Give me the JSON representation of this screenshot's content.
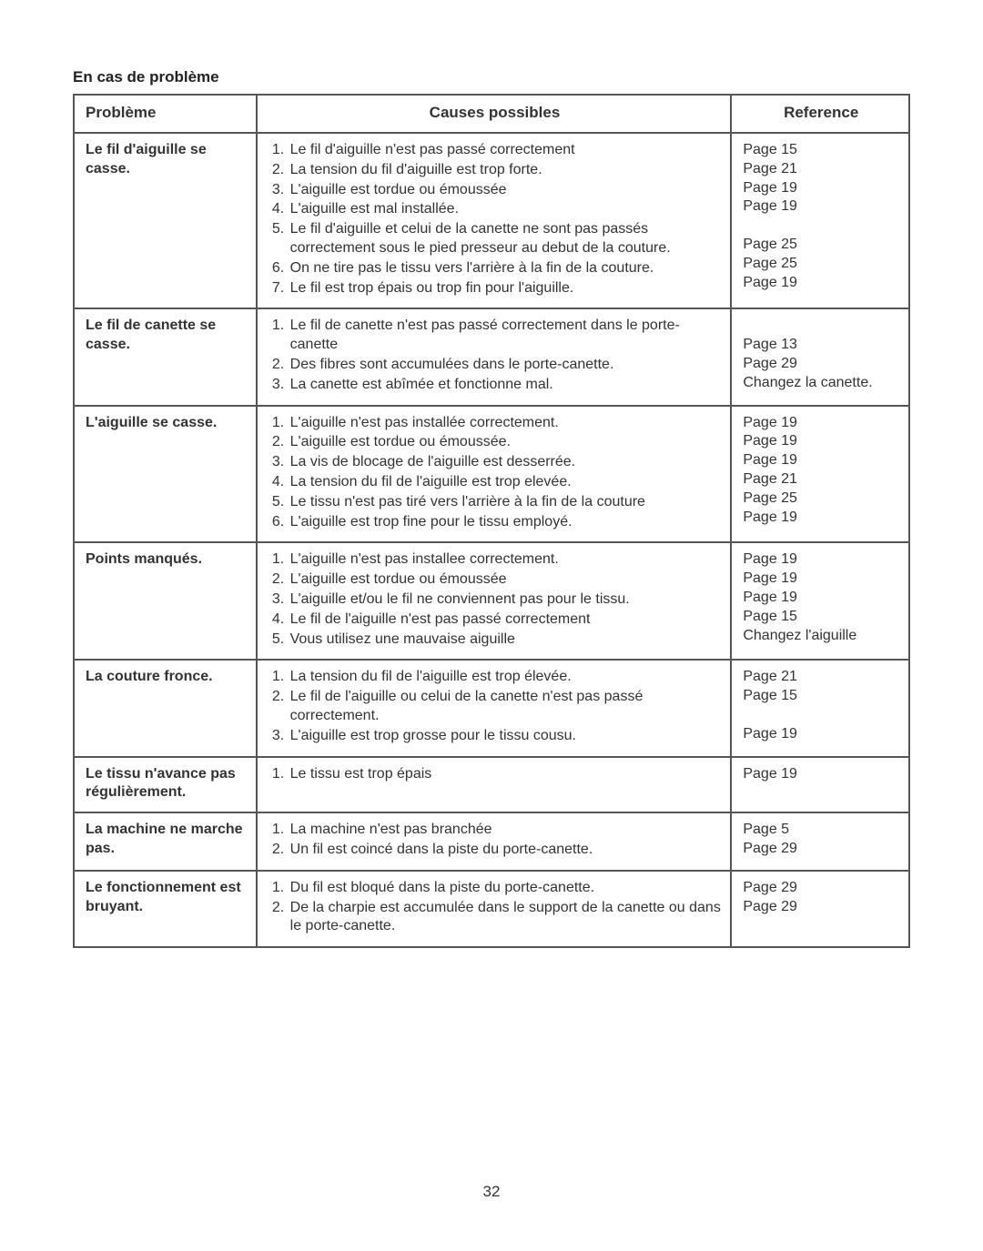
{
  "heading": "En cas de problème",
  "columns": {
    "problem": "Problème",
    "causes": "Causes possibles",
    "reference": "Reference"
  },
  "page_number": "32",
  "rows": [
    {
      "problem": "Le fil d'aiguille se casse.",
      "causes": [
        "Le fil d'aiguille n'est pas passé correctement",
        "La tension du fil d'aiguille est trop forte.",
        "L'aiguille est tordue ou émoussée",
        "L'aiguille est mal installée.",
        "Le fil d'aiguille et celui de la canette ne sont pas passés correctement sous le pied presseur au debut de la couture.",
        "On ne tire pas le tissu vers l'arrière à la fin de la couture.",
        "Le fil est trop épais ou trop fin pour l'aiguille."
      ],
      "refs": [
        "Page 15",
        "Page 21",
        "Page 19",
        "Page 19",
        "",
        "Page 25",
        "Page 25",
        "Page 19"
      ]
    },
    {
      "problem": "Le fil de canette se casse.",
      "causes": [
        "Le fil de canette n'est pas passé correctement dans le porte-canette",
        "Des fibres sont accumulées dans le porte-canette.",
        "La canette est abîmée et fonctionne mal."
      ],
      "refs": [
        "",
        "Page 13",
        "Page 29",
        "Changez la canette."
      ]
    },
    {
      "problem": "L'aiguille se casse.",
      "causes": [
        "L'aiguille n'est pas installée correctement.",
        "L'aiguille est tordue ou émoussée.",
        "La vis de blocage de l'aiguille est desserrée.",
        "La tension du fil de l'aiguille est trop elevée.",
        "Le tissu n'est pas tiré vers l'arrière à la fin de la couture",
        "L'aiguille est trop fine pour le tissu employé."
      ],
      "refs": [
        "Page 19",
        "Page 19",
        "Page 19",
        "Page 21",
        "Page 25",
        "Page 19"
      ]
    },
    {
      "problem": "Points manqués.",
      "causes": [
        "L'aiguille n'est pas installee correctement.",
        "L'aiguille est tordue ou émoussée",
        "L'aiguille et/ou le fil ne conviennent pas pour le tissu.",
        "Le fil de l'aiguille n'est pas passé correctement",
        "Vous utilisez une mauvaise aiguille"
      ],
      "refs": [
        "Page 19",
        "Page 19",
        "Page 19",
        "Page 15",
        "Changez l'aiguille"
      ]
    },
    {
      "problem": "La couture fronce.",
      "causes": [
        "La tension du fil de l'aiguille est trop élevée.",
        "Le fil de l'aiguille ou celui de la canette n'est pas passé correctement.",
        "L'aiguille est trop grosse pour le tissu cousu."
      ],
      "refs": [
        "Page 21",
        "Page 15",
        "",
        "Page 19"
      ]
    },
    {
      "problem": "Le tissu n'avance pas régulièrement.",
      "causes": [
        "Le tissu est trop épais"
      ],
      "refs": [
        "Page 19"
      ]
    },
    {
      "problem": "La machine ne marche pas.",
      "causes": [
        "La machine n'est pas branchée",
        "Un fil est coincé dans la piste du porte-canette."
      ],
      "refs": [
        "Page 5",
        "Page 29"
      ]
    },
    {
      "problem": "Le fonctionnement est bruyant.",
      "causes": [
        "Du fil est bloqué dans la piste du porte-canette.",
        "De la charpie est accumulée dans le support de la canette ou dans le porte-canette."
      ],
      "refs": [
        "Page 29",
        "Page 29"
      ]
    }
  ]
}
